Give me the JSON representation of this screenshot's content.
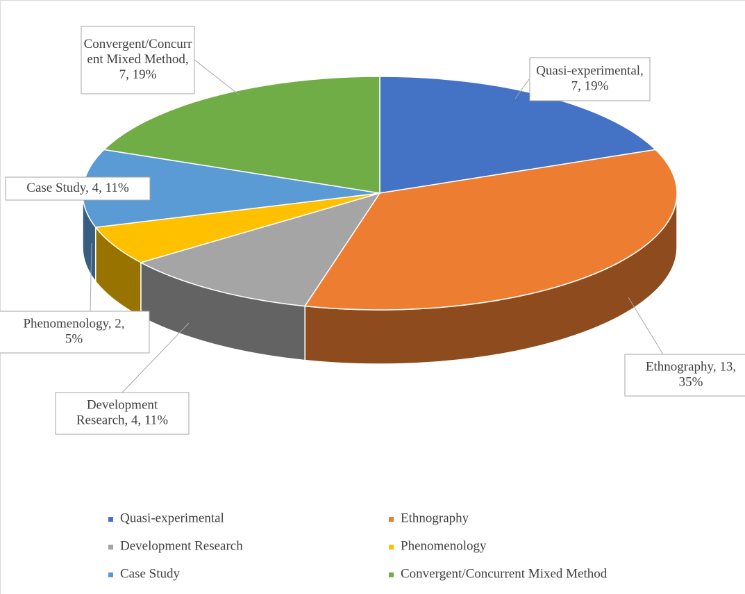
{
  "chart_data": {
    "type": "pie3d",
    "categories": [
      "Quasi-experimental",
      "Ethnography",
      "Development Research",
      "Phenomenology",
      "Case Study",
      "Convergent/Concurrent Mixed Method"
    ],
    "values": [
      7,
      13,
      4,
      2,
      4,
      7
    ],
    "value_labels": [
      [
        "Quasi-experimental,",
        "7, 19%"
      ],
      [
        "Ethnography, 13,",
        "35%"
      ],
      [
        "Development",
        "Research, 4, 11%"
      ],
      [
        "Phenomenology, 2,",
        "5%"
      ],
      [
        "Case Study, 4, 11%"
      ],
      [
        "Convergent/Concurr",
        "ent Mixed Method,",
        "7, 19%"
      ]
    ],
    "colors": [
      "#4472c4",
      "#ed7d31",
      "#a5a5a5",
      "#ffc000",
      "#5b9bd5",
      "#70ad47"
    ],
    "legend": "bottom"
  }
}
